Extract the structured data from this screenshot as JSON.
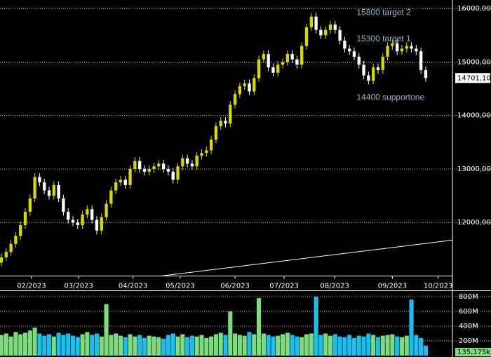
{
  "chart_data": [
    {
      "type": "candlestick",
      "open": [
        11250,
        11350,
        11450,
        11600,
        11750,
        11950,
        12200,
        12450,
        12850,
        12750,
        12600,
        12500,
        12700,
        12450,
        12200,
        12050,
        12000,
        11950,
        12150,
        12250,
        12050,
        11850,
        12100,
        12350,
        12600,
        12750,
        12800,
        12700,
        13000,
        13150,
        13000,
        12950,
        13000,
        13050,
        13100,
        13000,
        12950,
        12800,
        13050,
        13200,
        13100,
        13050,
        13250,
        13300,
        13350,
        13550,
        13800,
        13900,
        13850,
        14200,
        14400,
        14550,
        14600,
        14450,
        14700,
        15050,
        15150,
        14900,
        14800,
        14950,
        15000,
        15150,
        15050,
        14950,
        15300,
        15650,
        15850,
        15600,
        15500,
        15600,
        15700,
        15600,
        15400,
        15250,
        15200,
        15100,
        14950,
        14750,
        14650,
        14900,
        14850,
        15100,
        15300,
        15350,
        15200,
        15250,
        15300,
        15250,
        15200,
        14850
      ],
      "high": [
        11420,
        11520,
        11670,
        11820,
        12020,
        12270,
        12520,
        12920,
        12920,
        12820,
        12670,
        12770,
        12770,
        12520,
        12270,
        12120,
        12070,
        12220,
        12320,
        12320,
        12120,
        12170,
        12420,
        12670,
        12820,
        12870,
        12870,
        13070,
        13220,
        13220,
        13070,
        13070,
        13120,
        13170,
        13170,
        13070,
        13020,
        13120,
        13270,
        13270,
        13170,
        13320,
        13370,
        13420,
        13620,
        13870,
        13970,
        13970,
        14270,
        14470,
        14620,
        14670,
        14670,
        14770,
        15120,
        15220,
        15220,
        14970,
        15020,
        15070,
        15220,
        15220,
        15120,
        15370,
        15720,
        15920,
        15920,
        15670,
        15670,
        15770,
        15770,
        15670,
        15470,
        15320,
        15270,
        15170,
        15020,
        14820,
        14970,
        14970,
        15170,
        15370,
        15420,
        15420,
        15320,
        15370,
        15370,
        15320,
        15270,
        14920
      ],
      "low": [
        11180,
        11280,
        11380,
        11530,
        11680,
        11880,
        12130,
        12380,
        12680,
        12530,
        12430,
        12430,
        12380,
        12130,
        11980,
        11930,
        11880,
        11880,
        12080,
        11980,
        11780,
        11780,
        12030,
        12280,
        12530,
        12680,
        12630,
        12630,
        12930,
        12930,
        12880,
        12880,
        12930,
        12980,
        12930,
        12880,
        12730,
        12730,
        12980,
        13030,
        12980,
        12980,
        13180,
        13230,
        13280,
        13480,
        13730,
        13780,
        13780,
        14130,
        14330,
        14480,
        14380,
        14380,
        14630,
        14980,
        14830,
        14730,
        14730,
        14880,
        14930,
        14980,
        14880,
        14880,
        15230,
        15580,
        15530,
        15430,
        15430,
        15530,
        15530,
        15330,
        15180,
        15130,
        15030,
        14880,
        14680,
        14580,
        14580,
        14780,
        14780,
        15030,
        15230,
        15130,
        15130,
        15180,
        15180,
        15130,
        14780,
        14630
      ],
      "close": [
        11350,
        11450,
        11600,
        11750,
        11950,
        12200,
        12450,
        12850,
        12750,
        12600,
        12500,
        12700,
        12450,
        12200,
        12050,
        12000,
        11950,
        12150,
        12250,
        12050,
        11850,
        12100,
        12350,
        12600,
        12750,
        12800,
        12700,
        13000,
        13150,
        13000,
        12950,
        13000,
        13050,
        13100,
        13000,
        12950,
        12800,
        13050,
        13200,
        13100,
        13050,
        13250,
        13300,
        13350,
        13550,
        13800,
        13900,
        13850,
        14200,
        14400,
        14550,
        14600,
        14450,
        14700,
        15050,
        15150,
        14900,
        14800,
        14950,
        15000,
        15150,
        15050,
        14950,
        15300,
        15650,
        15850,
        15600,
        15500,
        15600,
        15700,
        15600,
        15400,
        15250,
        15200,
        15100,
        14950,
        14750,
        14650,
        14900,
        14850,
        15100,
        15300,
        15350,
        15200,
        15250,
        15300,
        15250,
        15200,
        14850,
        14701.1
      ],
      "last_close_label": "14701,10",
      "up_color": "#d8d800",
      "down_color": "#ffffff",
      "ylim": [
        11000,
        16160
      ],
      "yticks": [
        {
          "value": 12000,
          "label": "12000,00"
        },
        {
          "value": 13000,
          "label": "13000,00"
        },
        {
          "value": 14000,
          "label": "14000,00"
        },
        {
          "value": 15000,
          "label": "15000,00"
        },
        {
          "value": 16000,
          "label": "16000,00"
        }
      ],
      "xlim": [
        -0.3,
        94.6
      ],
      "xticks": [
        {
          "value": 6.3,
          "label": "02/2023"
        },
        {
          "value": 16.2,
          "label": "03/2023"
        },
        {
          "value": 27.6,
          "label": "04/2023"
        },
        {
          "value": 37.5,
          "label": "05/2023"
        },
        {
          "value": 49,
          "label": "06/2023"
        },
        {
          "value": 59.3,
          "label": "07/2023"
        },
        {
          "value": 69.9,
          "label": "08/2023"
        },
        {
          "value": 82,
          "label": "09/2023"
        },
        {
          "value": 91.6,
          "label": "10/2023"
        }
      ],
      "grid": true,
      "trendline": {
        "x": [
          33.5,
          94.6
        ],
        "y": [
          11000,
          11670
        ]
      },
      "annotations": [
        {
          "text": "15800 target 2",
          "x": 74.5,
          "y": 15920
        },
        {
          "text": "15300 target 1",
          "x": 74.5,
          "y": 15430
        },
        {
          "text": "14400 supportone",
          "x": 74.5,
          "y": 14330
        }
      ]
    },
    {
      "type": "bar",
      "values": [
        280,
        300,
        260,
        320,
        290,
        310,
        340,
        380,
        300,
        270,
        290,
        260,
        310,
        280,
        300,
        270,
        250,
        290,
        320,
        280,
        300,
        260,
        700,
        280,
        300,
        270,
        250,
        290,
        260,
        280,
        240,
        270,
        260,
        250,
        230,
        280,
        300,
        260,
        290,
        250,
        270,
        260,
        280,
        240,
        260,
        290,
        310,
        280,
        600,
        300,
        280,
        270,
        320,
        290,
        780,
        300,
        280,
        260,
        270,
        290,
        310,
        280,
        260,
        250,
        290,
        300,
        800,
        280,
        300,
        270,
        290,
        260,
        250,
        280,
        240,
        270,
        260,
        300,
        280,
        250,
        270,
        280,
        290,
        260,
        250,
        270,
        760,
        280,
        240,
        135.175
      ],
      "last_value_label": "135,175k",
      "up_color": "#7edc7e",
      "down_color": "#18c0ef",
      "ylim": [
        0,
        867
      ],
      "yticks": [
        {
          "value": 200,
          "label": "200M"
        },
        {
          "value": 400,
          "label": "400M"
        },
        {
          "value": 600,
          "label": "600M"
        },
        {
          "value": 800,
          "label": "800M"
        }
      ]
    }
  ]
}
